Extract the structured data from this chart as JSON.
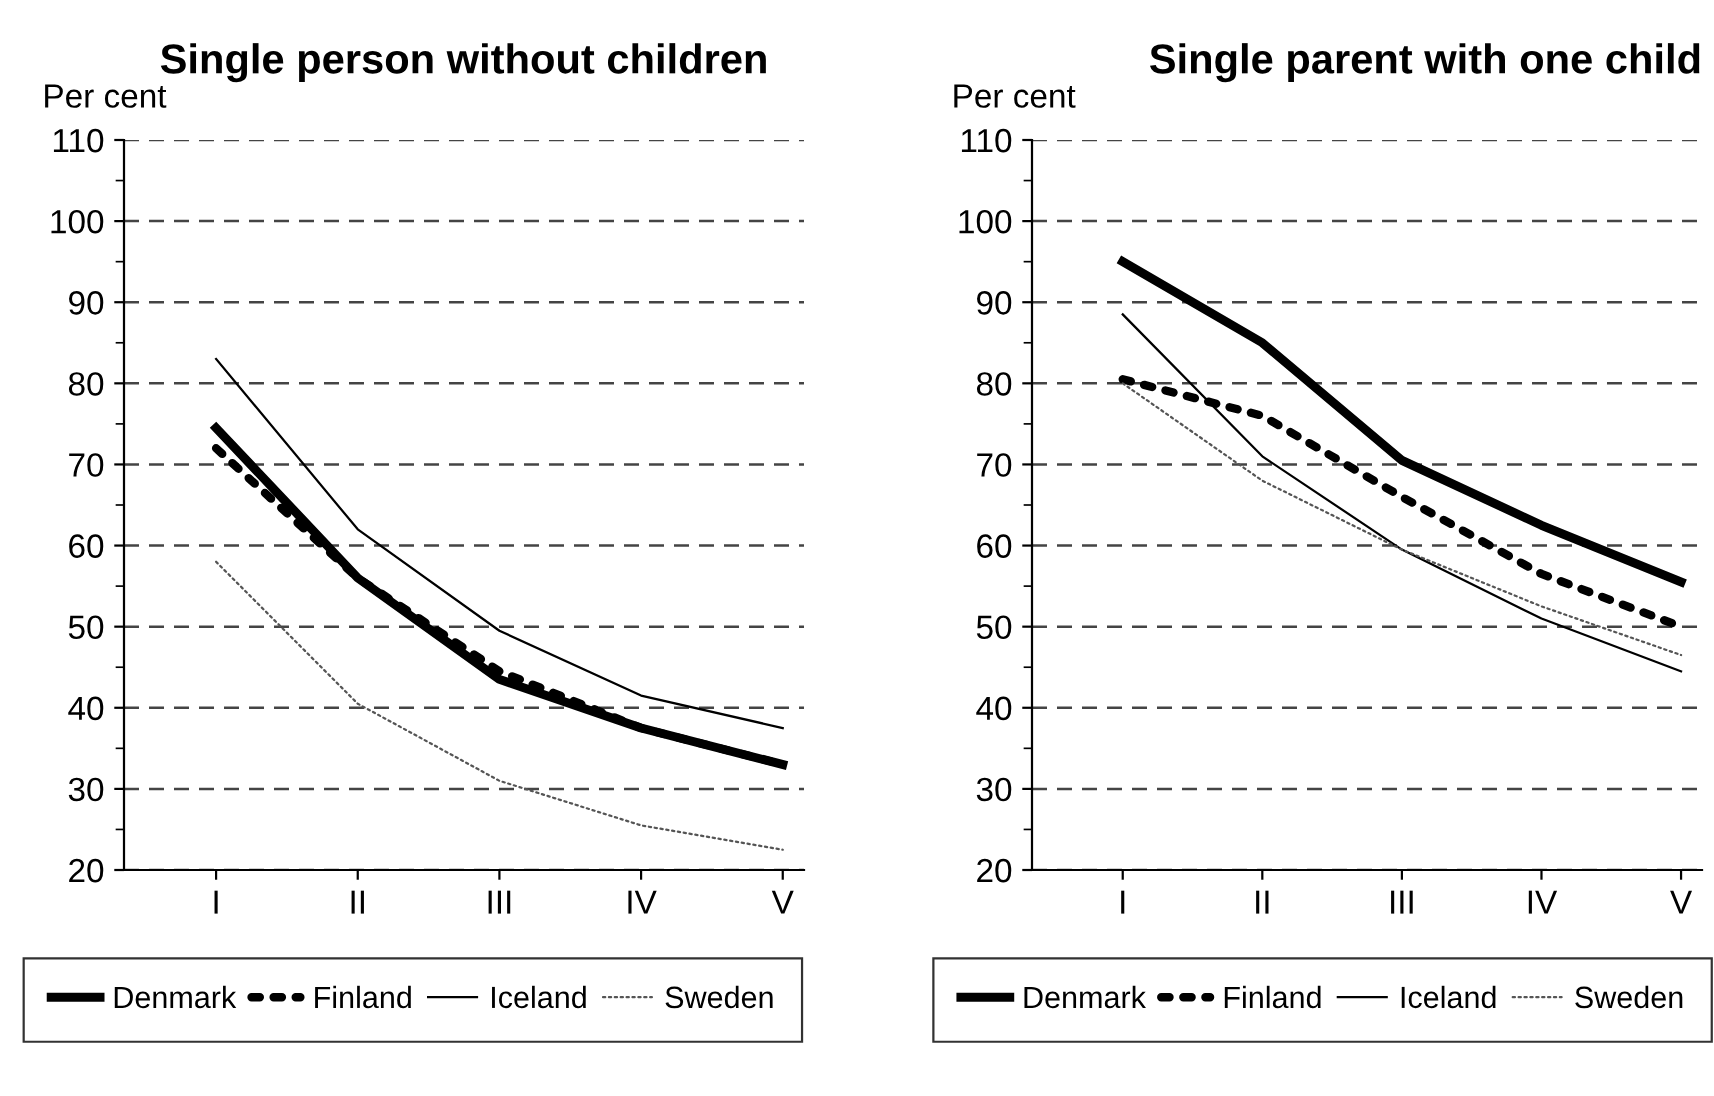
{
  "chart_data": [
    {
      "type": "line",
      "title": "Single person without children",
      "ylabel": "Per cent",
      "categories": [
        "I",
        "II",
        "III",
        "IV",
        "V"
      ],
      "series": [
        {
          "name": "Denmark",
          "color": "#000000",
          "line_style": "solid",
          "values": [
            74.5,
            56,
            43.5,
            37.5,
            33
          ]
        },
        {
          "name": "Finland",
          "color": "#000000",
          "line_style": "dotted",
          "values": [
            72,
            56,
            44.5,
            37.5,
            33
          ]
        },
        {
          "name": "Iceland",
          "color": "#000000",
          "line_style": "solid",
          "values": [
            83,
            62,
            49.5,
            41.5,
            37.5
          ]
        },
        {
          "name": "Sweden",
          "color": "#555555",
          "line_style": "dotted",
          "values": [
            58,
            40.5,
            31,
            25.5,
            22.5
          ]
        }
      ],
      "ylim": [
        20,
        110
      ],
      "yticks": [
        20,
        {
          "value": 25,
          "label": null
        },
        30,
        {
          "value": 35,
          "label": null
        },
        40,
        {
          "value": 45,
          "label": null
        },
        50,
        {
          "value": 55,
          "label": null
        },
        60,
        {
          "value": 65,
          "label": null
        },
        70,
        {
          "value": 75,
          "label": null
        },
        80,
        {
          "value": 85,
          "label": null
        },
        90,
        {
          "value": 95,
          "label": null
        },
        100,
        {
          "value": 105,
          "label": null
        },
        110
      ],
      "grid": "y",
      "legend": "bottom",
      "marker": "none"
    },
    {
      "type": "line",
      "title": "Single parent with one child",
      "ylabel": "Per cent",
      "categories": [
        "I",
        "II",
        "III",
        "IV",
        "V"
      ],
      "series": [
        {
          "name": "Denmark",
          "color": "#000000",
          "line_style": "solid",
          "values": [
            95,
            85,
            70.5,
            62.5,
            55.5
          ]
        },
        {
          "name": "Finland",
          "color": "#000000",
          "line_style": "dotted",
          "values": [
            80.5,
            76,
            66,
            56.5,
            50
          ]
        },
        {
          "name": "Iceland",
          "color": "#000000",
          "line_style": "solid",
          "values": [
            88.5,
            71,
            59.5,
            51,
            44.5
          ]
        },
        {
          "name": "Sweden",
          "color": "#555555",
          "line_style": "dotted",
          "values": [
            80,
            68,
            59.5,
            52.5,
            46.5
          ]
        }
      ],
      "ylim": [
        20,
        110
      ],
      "yticks": [
        20,
        {
          "value": 25,
          "label": null
        },
        30,
        {
          "value": 35,
          "label": null
        },
        40,
        {
          "value": 45,
          "label": null
        },
        50,
        {
          "value": 55,
          "label": null
        },
        60,
        {
          "value": 65,
          "label": null
        },
        70,
        {
          "value": 75,
          "label": null
        },
        80,
        {
          "value": 85,
          "label": null
        },
        90,
        {
          "value": 95,
          "label": null
        },
        100,
        {
          "value": 105,
          "label": null
        },
        110
      ],
      "grid": "y",
      "legend": "bottom",
      "marker": "none"
    }
  ]
}
